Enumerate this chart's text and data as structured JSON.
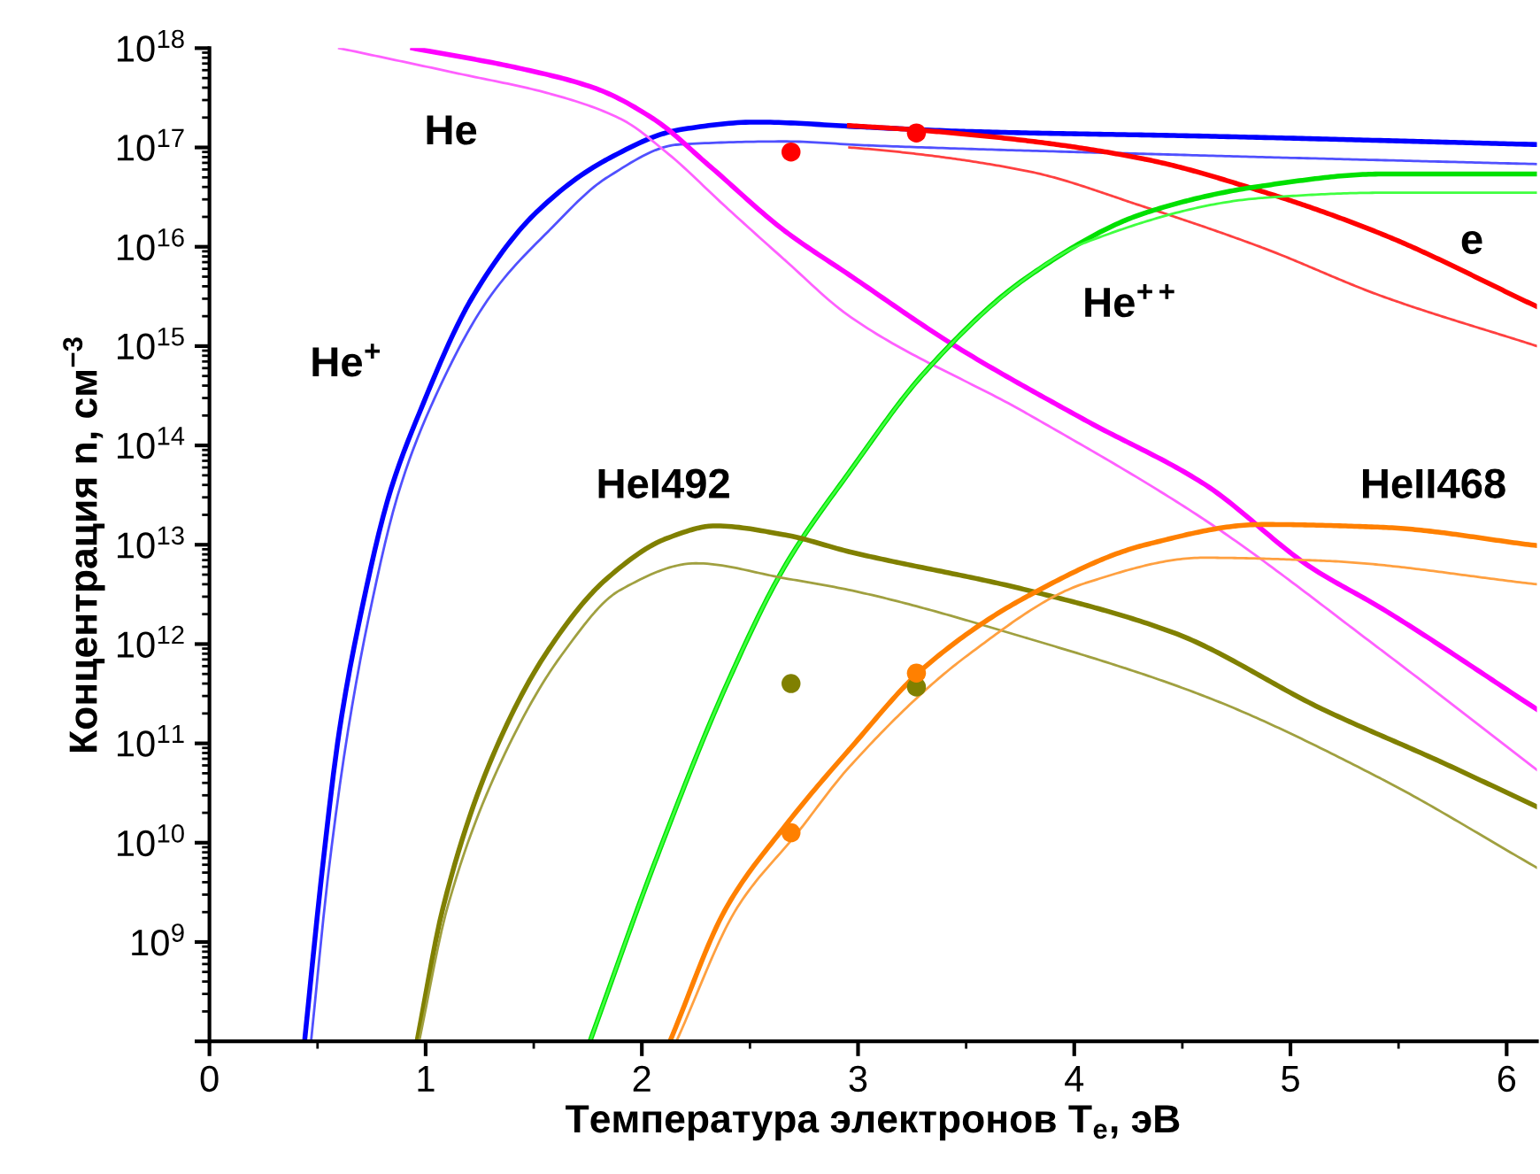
{
  "chart_data": {
    "type": "line",
    "xlabel": "Температура электронов T$_{e}$, эВ",
    "ylabel": "Концентрация n, см$^{−3}$",
    "log": "y",
    "grid": false,
    "legend": false,
    "marker": "none",
    "line_style": "solid",
    "xlim": [
      0,
      6.14
    ],
    "xticks": [
      0,
      1,
      2,
      3,
      4,
      5,
      6
    ],
    "ylim": [
      100000000.0,
      1e+18
    ],
    "yticks": [
      {
        "value": 100000000.0,
        "label": null
      },
      {
        "value": 1000000000.0,
        "label": "10$^{9}$"
      },
      {
        "value": 10000000000.0,
        "label": "10$^{10}$"
      },
      {
        "value": 100000000000.0,
        "label": "10$^{11}$"
      },
      {
        "value": 1000000000000.0,
        "label": "10$^{12}$"
      },
      {
        "value": 10000000000000.0,
        "label": "10$^{13}$"
      },
      {
        "value": 100000000000000.0,
        "label": "10$^{14}$"
      },
      {
        "value": 1000000000000000.0,
        "label": "10$^{15}$"
      },
      {
        "value": 1e+16,
        "label": "10$^{16}$"
      },
      {
        "value": 1e+17,
        "label": "10$^{17}$"
      },
      {
        "value": 1e+18,
        "label": "10$^{18}$"
      }
    ],
    "series": [
      {
        "name": "He$^{+}$",
        "color": "#0000ff",
        "x": [
          0.44,
          0.52,
          0.6,
          0.7,
          0.83,
          0.97,
          1.22,
          1.51,
          1.84,
          2.17,
          2.53,
          3.04,
          3.5,
          4.6,
          6.14
        ],
        "values": [
          100000000.0,
          4900000000.0,
          130000000000.0,
          2000000000000.0,
          31000000000000.0,
          210000000000000.0,
          3200000000000000.0,
          2.2e+16,
          7.6e+16,
          1.5e+17,
          1.8e+17,
          1.6e+17,
          1.45e+17,
          1.3e+17,
          1.07e+17
        ]
      },
      {
        "color": "#5050ff",
        "x": [
          0.47,
          0.55,
          0.64,
          0.74,
          0.87,
          1.01,
          1.3,
          1.57,
          1.84,
          2.17,
          2.66,
          3.04,
          4.6,
          6.14
        ],
        "values": [
          100000000.0,
          4900000000.0,
          130000000000.0,
          2000000000000.0,
          31000000000000.0,
          210000000000000.0,
          3200000000000000.0,
          1.45e+16,
          5e+16,
          1.07e+17,
          1.15e+17,
          1.05e+17,
          8.3e+16,
          6.8e+16
        ]
      },
      {
        "name": "He",
        "color": "#ff00ff",
        "x": [
          0.94,
          1.43,
          1.79,
          2.06,
          2.31,
          2.66,
          2.96,
          3.45,
          4.05,
          4.6,
          5.09,
          5.42,
          6.14
        ],
        "values": [
          1e+18,
          6.3e+17,
          3.9e+17,
          1.9e+17,
          6.6e+16,
          1.45e+16,
          5200000000000000.0,
          1000000000000000.0,
          180000000000000.0,
          41000000000000.0,
          6000000000000.0,
          2300000000000.0,
          220000000000.0
        ]
      },
      {
        "color": "#ff60ff",
        "x": [
          0.6,
          1.16,
          1.57,
          1.9,
          2.12,
          2.39,
          2.66,
          2.96,
          3.78,
          4.6,
          5.42,
          6.14
        ],
        "values": [
          1e+18,
          5.5e+17,
          3.5e+17,
          1.95e+17,
          8.7e+16,
          2.5e+16,
          7400000000000000.0,
          2000000000000000.0,
          210000000000000.0,
          18000000000000.0,
          870000000000.0,
          54000000000.0
        ]
      },
      {
        "name": "e",
        "color": "#ff0000",
        "x": [
          2.96,
          3.27,
          3.78,
          4.33,
          4.87,
          5.42,
          6.14
        ],
        "values": [
          1.66e+17,
          1.5e+17,
          1.17e+17,
          7.6e+16,
          3.6e+16,
          1.35e+16,
          2500000000000000.0
        ]
      },
      {
        "color": "#ff4040",
        "x": [
          2.96,
          3.13,
          3.78,
          4.33,
          4.87,
          5.42,
          6.14
        ],
        "values": [
          1e+17,
          9.3e+16,
          5.8e+16,
          2.5e+16,
          9800000000000000.0,
          3200000000000000.0,
          1000000000000000.0
        ]
      },
      {
        "name": "He$^{++}$",
        "color": "#00e000",
        "x": [
          1.76,
          2.06,
          2.39,
          2.66,
          2.96,
          3.31,
          3.78,
          4.33,
          4.87,
          5.42,
          6.14
        ],
        "values": [
          100000000.0,
          6300000000.0,
          380000000000.0,
          6000000000000.0,
          54000000000000.0,
          550000000000000.0,
          4900000000000000.0,
          2.2e+16,
          4.1e+16,
          5.4e+16,
          5.4e+16
        ]
      },
      {
        "color": "#40ff40",
        "x": [
          1.76,
          2.06,
          2.39,
          2.66,
          2.96,
          3.31,
          3.78,
          4.05,
          4.87,
          5.42,
          6.14
        ],
        "values": [
          100000000.0,
          6300000000.0,
          380000000000.0,
          6000000000000.0,
          54000000000000.0,
          550000000000000.0,
          4900000000000000.0,
          1.1e+16,
          3.1e+16,
          3.5e+16,
          3.5e+16
        ]
      },
      {
        "name": "HeI492",
        "color": "#808000",
        "x": [
          0.96,
          1.08,
          1.3,
          1.57,
          1.84,
          2.12,
          2.34,
          2.66,
          2.96,
          3.78,
          4.46,
          5.15,
          5.69,
          6.14
        ],
        "values": [
          100000000.0,
          2200000000.0,
          66000000000.0,
          890000000000.0,
          4600000000000.0,
          11700000000000.0,
          15500000000000.0,
          12600000000000.0,
          8500000000000.0,
          3500000000000.0,
          1300000000000.0,
          220000000000.0,
          66000000000.0,
          23000000000.0
        ]
      },
      {
        "color": "#a0a040",
        "x": [
          0.97,
          1.1,
          1.35,
          1.63,
          1.9,
          2.25,
          2.66,
          2.96,
          3.78,
          4.6,
          5.42,
          6.14
        ],
        "values": [
          100000000.0,
          2200000000.0,
          66000000000.0,
          780000000000.0,
          3500000000000.0,
          6500000000000.0,
          4600000000000.0,
          3500000000000.0,
          1150000000000.0,
          300000000000.0,
          44000000000.0,
          5600000000.0
        ]
      },
      {
        "name": "HeII468",
        "color": "#ff8000",
        "x": [
          2.13,
          2.39,
          2.66,
          2.96,
          3.31,
          3.78,
          4.33,
          4.87,
          5.42,
          6.14
        ],
        "values": [
          100000000.0,
          2200000000.0,
          14500000000.0,
          87000000000.0,
          590000000000.0,
          3000000000000.0,
          10000000000000.0,
          16000000000000.0,
          15000000000000.0,
          9800000000000.0
        ]
      },
      {
        "color": "#ffa040",
        "x": [
          2.16,
          2.44,
          2.72,
          2.96,
          3.51,
          4.05,
          4.6,
          5.15,
          6.14
        ],
        "values": [
          100000000.0,
          2200000000.0,
          12600000000.0,
          58000000000.0,
          780000000000.0,
          4100000000000.0,
          7400000000000.0,
          6900000000000.0,
          4000000000000.0
        ]
      },
      {
        "type": "scatter",
        "marker": "circle",
        "color": "#ff0000",
        "x": [
          2.69,
          3.27
        ],
        "values": [
          9e+16,
          1.4e+17
        ]
      },
      {
        "type": "scatter",
        "marker": "circle",
        "color": "#808000",
        "x": [
          2.69,
          3.27
        ],
        "values": [
          400000000000.0,
          370000000000.0
        ]
      },
      {
        "type": "scatter",
        "marker": "circle",
        "color": "#ff8000",
        "x": [
          2.69,
          3.27
        ],
        "values": [
          12600000000.0,
          510000000000.0
        ]
      }
    ]
  }
}
